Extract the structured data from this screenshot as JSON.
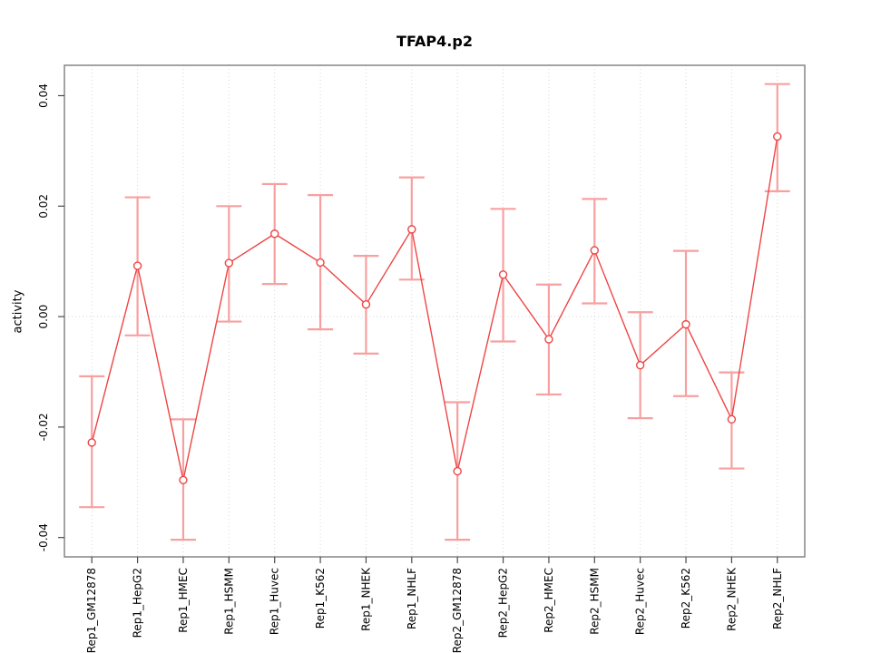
{
  "chart_data": {
    "type": "line",
    "title": "TFAP4.p2",
    "ylabel": "activity",
    "xlabel": "",
    "legend": "none",
    "point_style": "open-circle",
    "grid": {
      "vertical": "dotted at each category",
      "horizontal": "dotted at zero only"
    },
    "categories": [
      "Rep1_GM12878",
      "Rep1_HepG2",
      "Rep1_HMEC",
      "Rep1_HSMM",
      "Rep1_Huvec",
      "Rep1_K562",
      "Rep1_NHEK",
      "Rep1_NHLF",
      "Rep2_GM12878",
      "Rep2_HepG2",
      "Rep2_HMEC",
      "Rep2_HSMM",
      "Rep2_Huvec",
      "Rep2_K562",
      "Rep2_NHEK",
      "Rep2_NHLF"
    ],
    "series": [
      {
        "name": "activity",
        "values": [
          -0.0228,
          0.0092,
          -0.0296,
          0.0097,
          0.015,
          0.0098,
          0.0022,
          0.0158,
          -0.028,
          0.0076,
          -0.0041,
          0.012,
          -0.0088,
          -0.0014,
          -0.0186,
          0.0326
        ],
        "error_low": [
          -0.0345,
          -0.0034,
          -0.0404,
          -0.0009,
          0.0059,
          -0.0023,
          -0.0067,
          0.0067,
          -0.0404,
          -0.0045,
          -0.0141,
          0.0024,
          -0.0184,
          -0.0144,
          -0.0275,
          0.0227
        ],
        "error_high": [
          -0.0108,
          0.0216,
          -0.0186,
          0.02,
          0.024,
          0.022,
          0.011,
          0.0252,
          -0.0155,
          0.0195,
          0.0058,
          0.0213,
          0.0008,
          0.0119,
          -0.0101,
          0.0421
        ]
      }
    ],
    "yticks": [
      {
        "value": -0.04,
        "label": "-0.04"
      },
      {
        "value": -0.02,
        "label": "-0.02"
      },
      {
        "value": 0.0,
        "label": "0.00"
      },
      {
        "value": 0.02,
        "label": "0.02"
      },
      {
        "value": 0.04,
        "label": "0.04"
      }
    ],
    "ylim": [
      -0.0435,
      0.0455
    ],
    "colors": {
      "line": "#ee4545",
      "error_bar": "#f8a0a0",
      "point_fill": "#ffffff",
      "grid": "#d7d7d7",
      "axis_box": "#858585",
      "tick": "#4a4a4a",
      "text": "#000000",
      "background": "#ffffff"
    }
  }
}
